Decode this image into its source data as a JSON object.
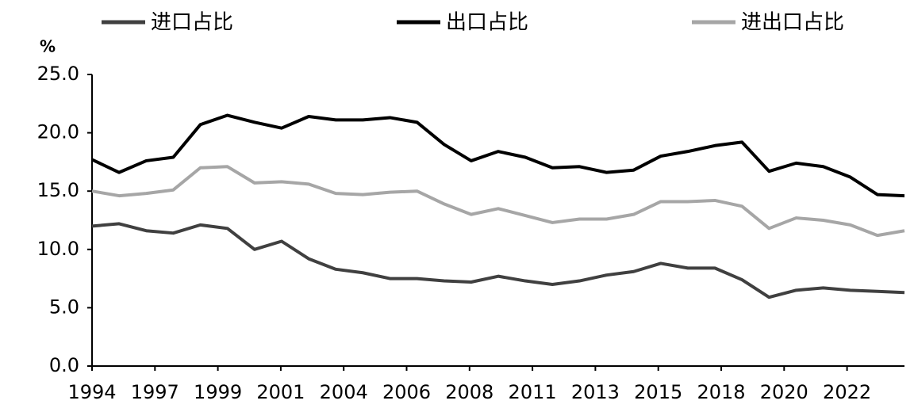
{
  "chart_data": {
    "type": "line",
    "y_unit": "%",
    "x_tick_labels": [
      "1994",
      "1997",
      "1999",
      "2001",
      "2004",
      "2006",
      "2008",
      "2011",
      "2013",
      "2015",
      "2018",
      "2020",
      "2022"
    ],
    "ylim": [
      0,
      25
    ],
    "yticks": [
      {
        "value": 0,
        "label": "0.0"
      },
      {
        "value": 5,
        "label": "5.0"
      },
      {
        "value": 10,
        "label": "10.0"
      },
      {
        "value": 15,
        "label": "15.0"
      },
      {
        "value": 20,
        "label": "20.0"
      },
      {
        "value": 25,
        "label": "25.0"
      }
    ],
    "series": [
      {
        "name": "进口占比",
        "color": "#404040",
        "values": [
          12.0,
          12.2,
          11.6,
          11.4,
          12.1,
          11.8,
          10.0,
          10.7,
          9.2,
          8.3,
          8.0,
          7.5,
          7.5,
          7.3,
          7.2,
          7.7,
          7.3,
          7.0,
          7.3,
          7.8,
          8.1,
          8.8,
          8.4,
          8.4,
          7.4,
          5.9,
          6.5,
          6.7,
          6.5,
          6.4,
          6.3
        ]
      },
      {
        "name": "出口占比",
        "color": "#000000",
        "values": [
          17.7,
          16.6,
          17.6,
          17.9,
          20.7,
          21.5,
          20.9,
          20.4,
          21.4,
          21.1,
          21.1,
          21.3,
          20.9,
          19.0,
          17.6,
          18.4,
          17.9,
          17.0,
          17.1,
          16.6,
          16.8,
          18.0,
          18.4,
          18.9,
          19.2,
          16.7,
          17.4,
          17.1,
          16.2,
          14.7,
          14.6
        ]
      },
      {
        "name": "进出口占比",
        "color": "#a6a6a6",
        "values": [
          15.0,
          14.6,
          14.8,
          15.1,
          17.0,
          17.1,
          15.7,
          15.8,
          15.6,
          14.8,
          14.7,
          14.9,
          15.0,
          13.9,
          13.0,
          13.5,
          12.9,
          12.3,
          12.6,
          12.6,
          13.0,
          14.1,
          14.1,
          14.2,
          13.7,
          11.8,
          12.7,
          12.5,
          12.1,
          11.2,
          11.6
        ]
      }
    ]
  }
}
